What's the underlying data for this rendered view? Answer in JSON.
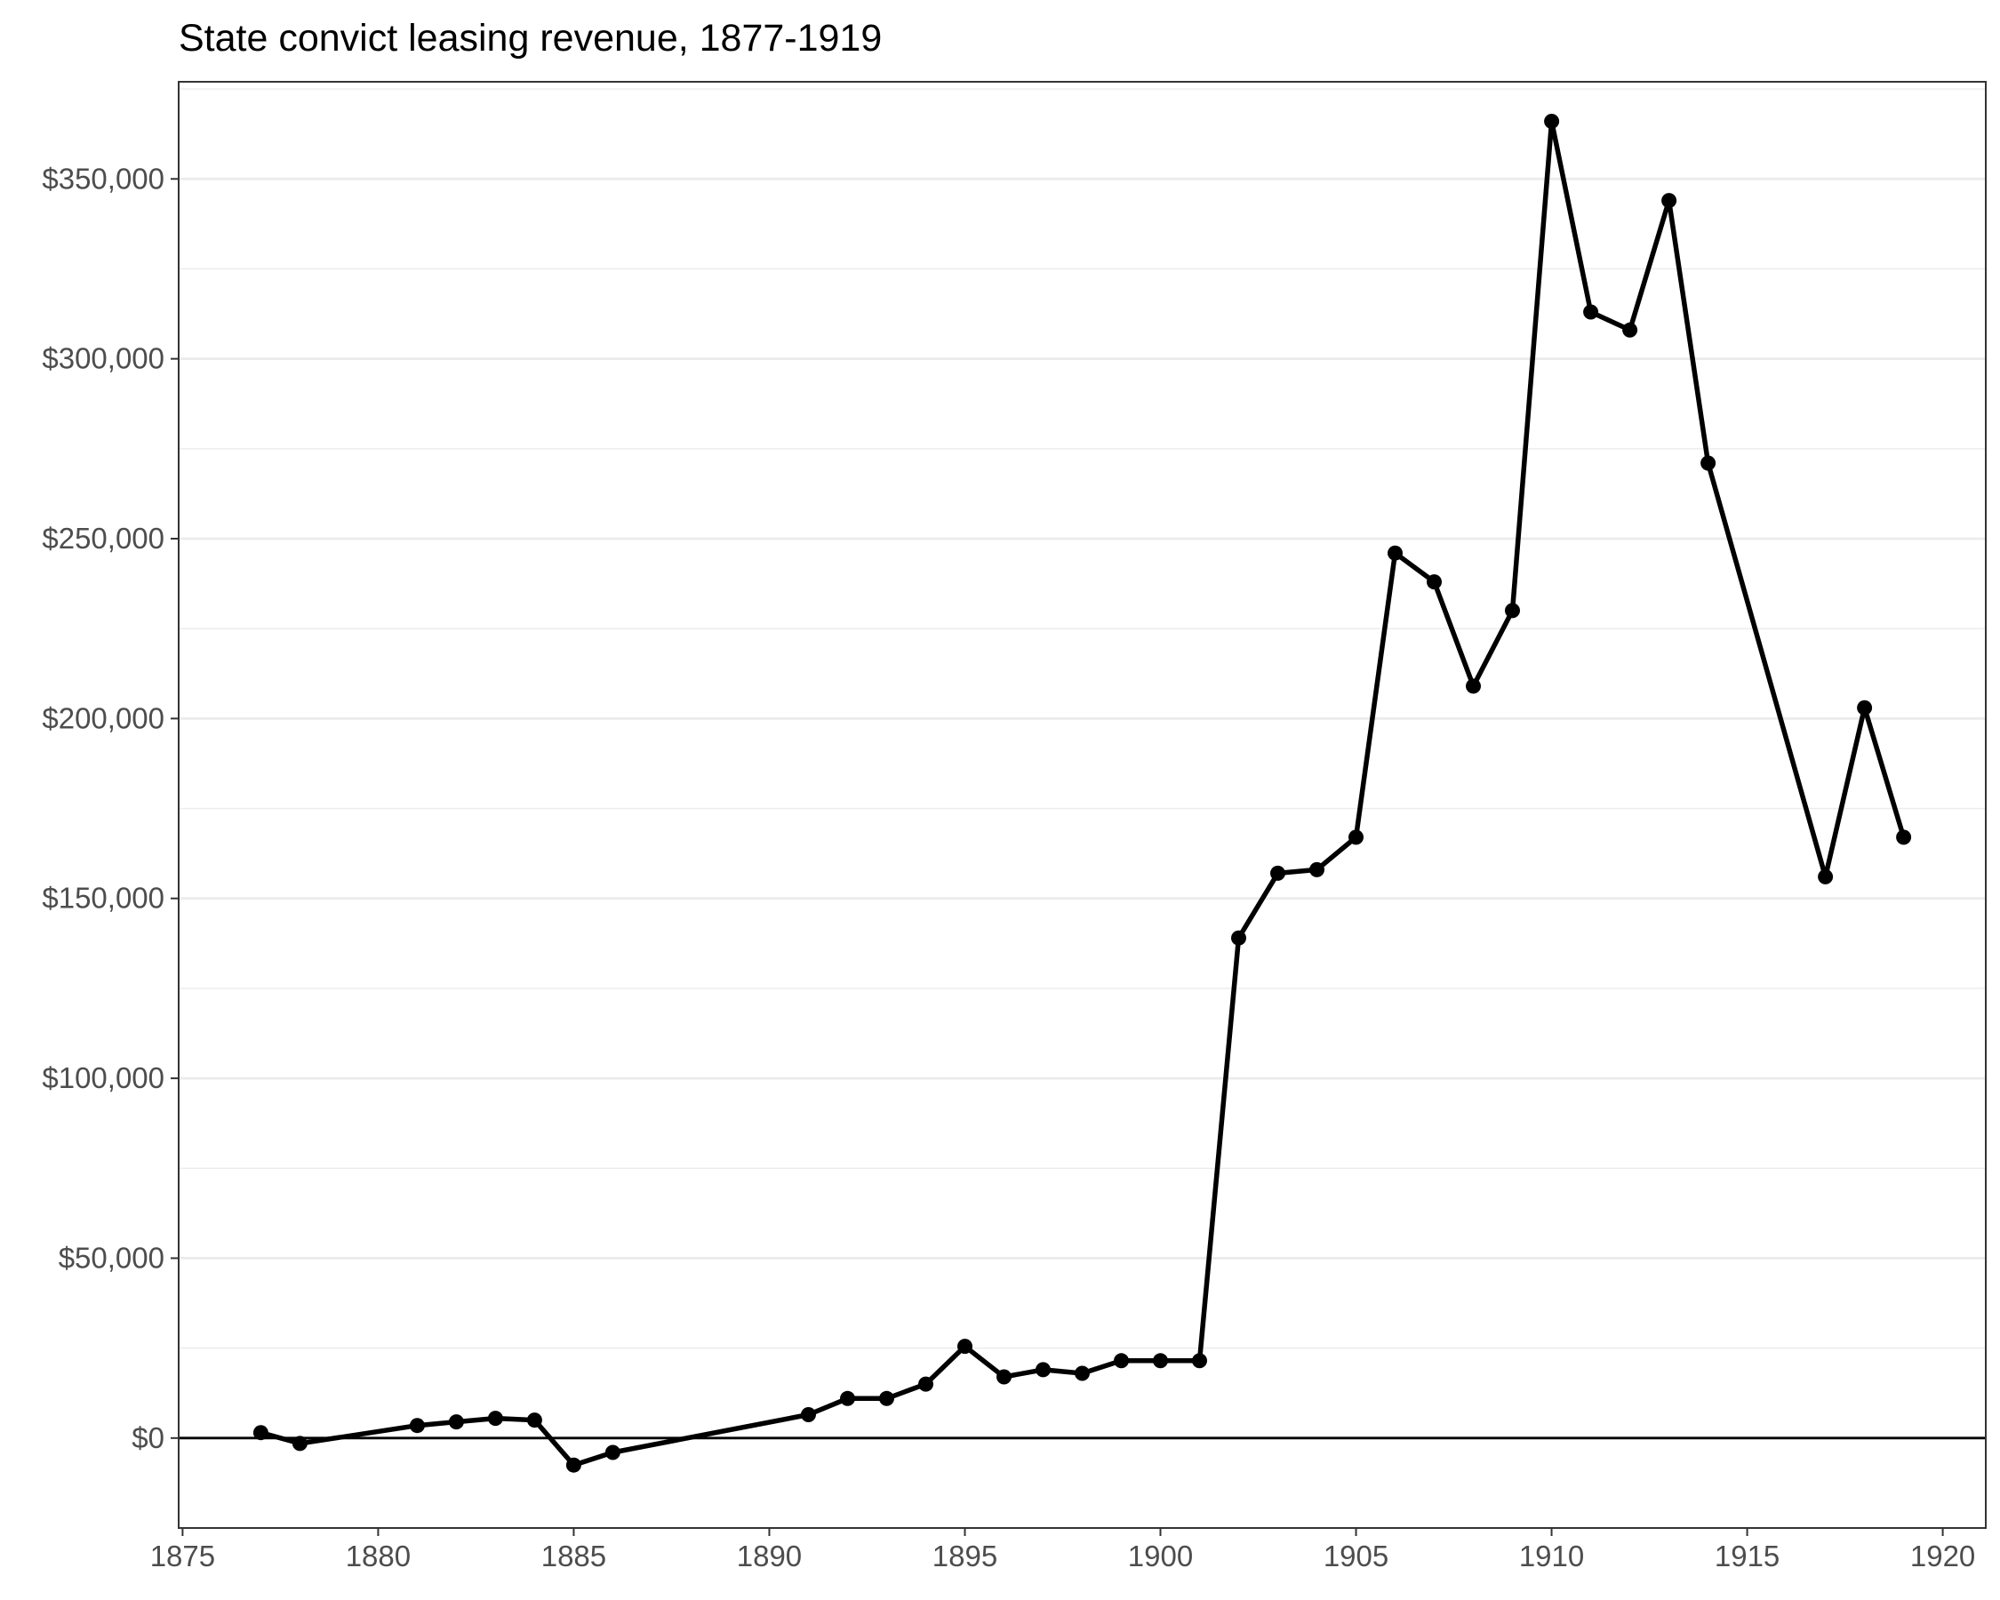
{
  "chart_data": {
    "type": "line",
    "title": "State convict leasing revenue, 1877-1919",
    "xlabel": "",
    "ylabel": "",
    "xlim": [
      1874.9,
      1921.1
    ],
    "ylim": [
      -25000,
      377000
    ],
    "x_ticks": [
      1875,
      1880,
      1885,
      1890,
      1895,
      1900,
      1905,
      1910,
      1915,
      1920
    ],
    "x_tick_labels": [
      "1875",
      "1880",
      "1885",
      "1890",
      "1895",
      "1900",
      "1905",
      "1910",
      "1915",
      "1920"
    ],
    "y_ticks": [
      0,
      50000,
      100000,
      150000,
      200000,
      250000,
      300000,
      350000
    ],
    "y_tick_labels": [
      "$0",
      "$50,000",
      "$100,000",
      "$150,000",
      "$200,000",
      "$250,000",
      "$300,000",
      "$350,000"
    ],
    "y_minor_ticks": [
      25000,
      75000,
      125000,
      175000,
      225000,
      275000,
      325000,
      375000
    ],
    "grid": true,
    "zero_line": true,
    "legend": "none",
    "series": [
      {
        "x": [
          1877,
          1878,
          1881,
          1882,
          1883,
          1884,
          1885,
          1886,
          1891,
          1892,
          1893,
          1894,
          1895,
          1896,
          1897,
          1898,
          1899,
          1900,
          1901,
          1902,
          1903,
          1904,
          1905,
          1906,
          1907,
          1908,
          1909,
          1910,
          1911,
          1912,
          1913,
          1914,
          1917,
          1918,
          1919
        ],
        "values": [
          1500,
          -1500,
          3500,
          4500,
          5500,
          5000,
          -7500,
          -4000,
          6500,
          11000,
          11000,
          15000,
          25500,
          17000,
          19000,
          18000,
          21500,
          21500,
          21500,
          139000,
          157000,
          158000,
          167000,
          246000,
          238000,
          209000,
          230000,
          366000,
          313000,
          308000,
          344000,
          271000,
          156000,
          203000,
          167000
        ]
      }
    ],
    "colors": {
      "line": "#000000",
      "grid": "#ebebeb",
      "zero_line": "#000000",
      "panel_border": "#333333",
      "tick_label": "#4d4d4d"
    }
  }
}
